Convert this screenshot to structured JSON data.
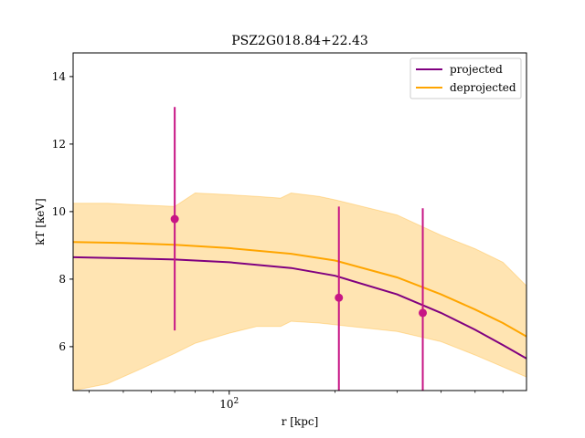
{
  "chart_data": {
    "type": "line",
    "title": "PSZ2G018.84+22.43",
    "xlabel": "r [kpc]",
    "ylabel": "kT [keV]",
    "x_scale": "log",
    "xlim": [
      36,
      700
    ],
    "ylim": [
      4.7,
      14.7
    ],
    "y_ticks": [
      6,
      8,
      10,
      12,
      14
    ],
    "x_ticks": [
      {
        "value": 100,
        "label": "10^2"
      }
    ],
    "x_minor_ticks": [
      40,
      50,
      60,
      70,
      80,
      90,
      200,
      300,
      400,
      500,
      600
    ],
    "grid": false,
    "legend_position": "top-right",
    "colors": {
      "projected": "#800080",
      "deprojected": "#ffa500",
      "band": "#ffa500",
      "points": "#c71585"
    },
    "series": [
      {
        "name": "projected",
        "x": [
          36,
          50,
          70,
          100,
          150,
          200,
          300,
          400,
          500,
          600,
          700
        ],
        "y": [
          8.65,
          8.62,
          8.58,
          8.5,
          8.33,
          8.1,
          7.55,
          7.0,
          6.5,
          6.05,
          5.65
        ]
      },
      {
        "name": "deprojected",
        "x": [
          36,
          50,
          70,
          100,
          150,
          200,
          300,
          400,
          500,
          600,
          700
        ],
        "y": [
          9.1,
          9.07,
          9.02,
          8.92,
          8.75,
          8.55,
          8.05,
          7.55,
          7.1,
          6.7,
          6.3
        ]
      }
    ],
    "band": {
      "name": "deprojected",
      "x": [
        36,
        45,
        55,
        70,
        80,
        100,
        120,
        140,
        150,
        180,
        200,
        300,
        400,
        500,
        600,
        700
      ],
      "lower": [
        4.7,
        4.9,
        5.3,
        5.8,
        6.1,
        6.4,
        6.6,
        6.6,
        6.75,
        6.7,
        6.65,
        6.45,
        6.15,
        5.75,
        5.4,
        5.1
      ],
      "upper": [
        10.25,
        10.25,
        10.2,
        10.15,
        10.55,
        10.5,
        10.45,
        10.4,
        10.55,
        10.45,
        10.35,
        9.9,
        9.3,
        8.9,
        8.5,
        7.8
      ]
    },
    "points": {
      "x": [
        70,
        205,
        355
      ],
      "y": [
        9.78,
        7.45,
        7.0
      ],
      "err_low": [
        3.3,
        2.75,
        2.3
      ],
      "err_high": [
        3.32,
        2.7,
        3.1
      ]
    }
  }
}
